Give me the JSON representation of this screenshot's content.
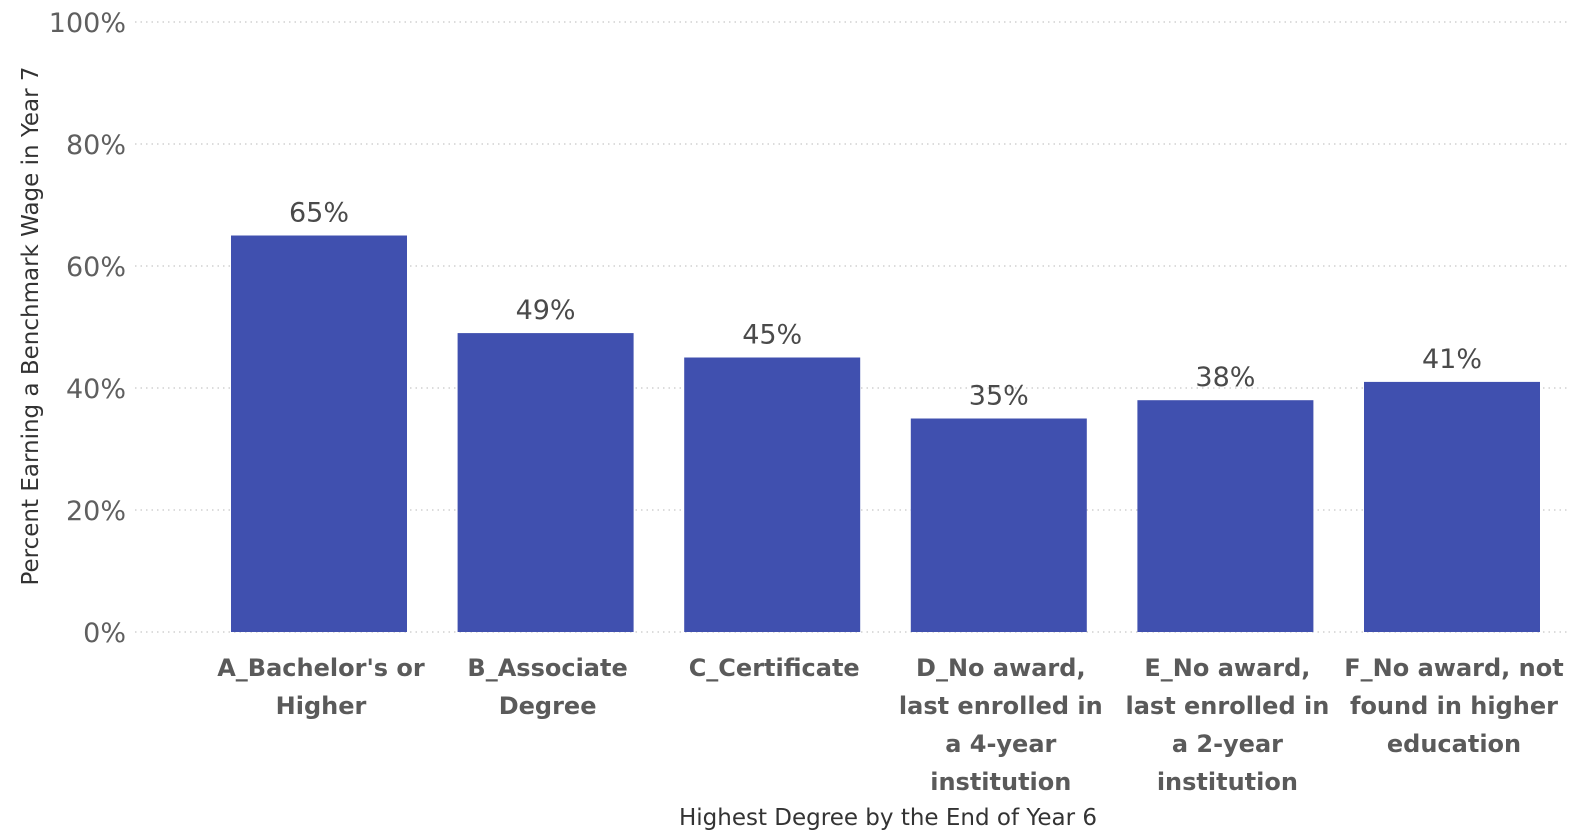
{
  "chart_data": {
    "type": "bar",
    "categories": [
      [
        "A_Bachelor's or",
        "Higher"
      ],
      [
        "B_Associate",
        "Degree"
      ],
      [
        "C_Certificate"
      ],
      [
        "D_No award,",
        "last enrolled in",
        "a 4-year",
        "institution"
      ],
      [
        "E_No award,",
        "last enrolled in",
        "a 2-year",
        "institution"
      ],
      [
        "F_No award, not",
        "found in higher",
        "education"
      ]
    ],
    "values": [
      65,
      49,
      45,
      35,
      38,
      41
    ],
    "data_labels": [
      "65%",
      "49%",
      "45%",
      "35%",
      "38%",
      "41%"
    ],
    "y_ticks": [
      0,
      20,
      40,
      60,
      80,
      100
    ],
    "y_tick_labels": [
      "0%",
      "20%",
      "40%",
      "60%",
      "80%",
      "100%"
    ],
    "ylim": [
      0,
      100
    ],
    "xlabel": "Highest Degree by the End of Year 6",
    "ylabel": "Percent Earning a Benchmark Wage in Year 7",
    "bar_color": "#4050af",
    "grid": true
  }
}
